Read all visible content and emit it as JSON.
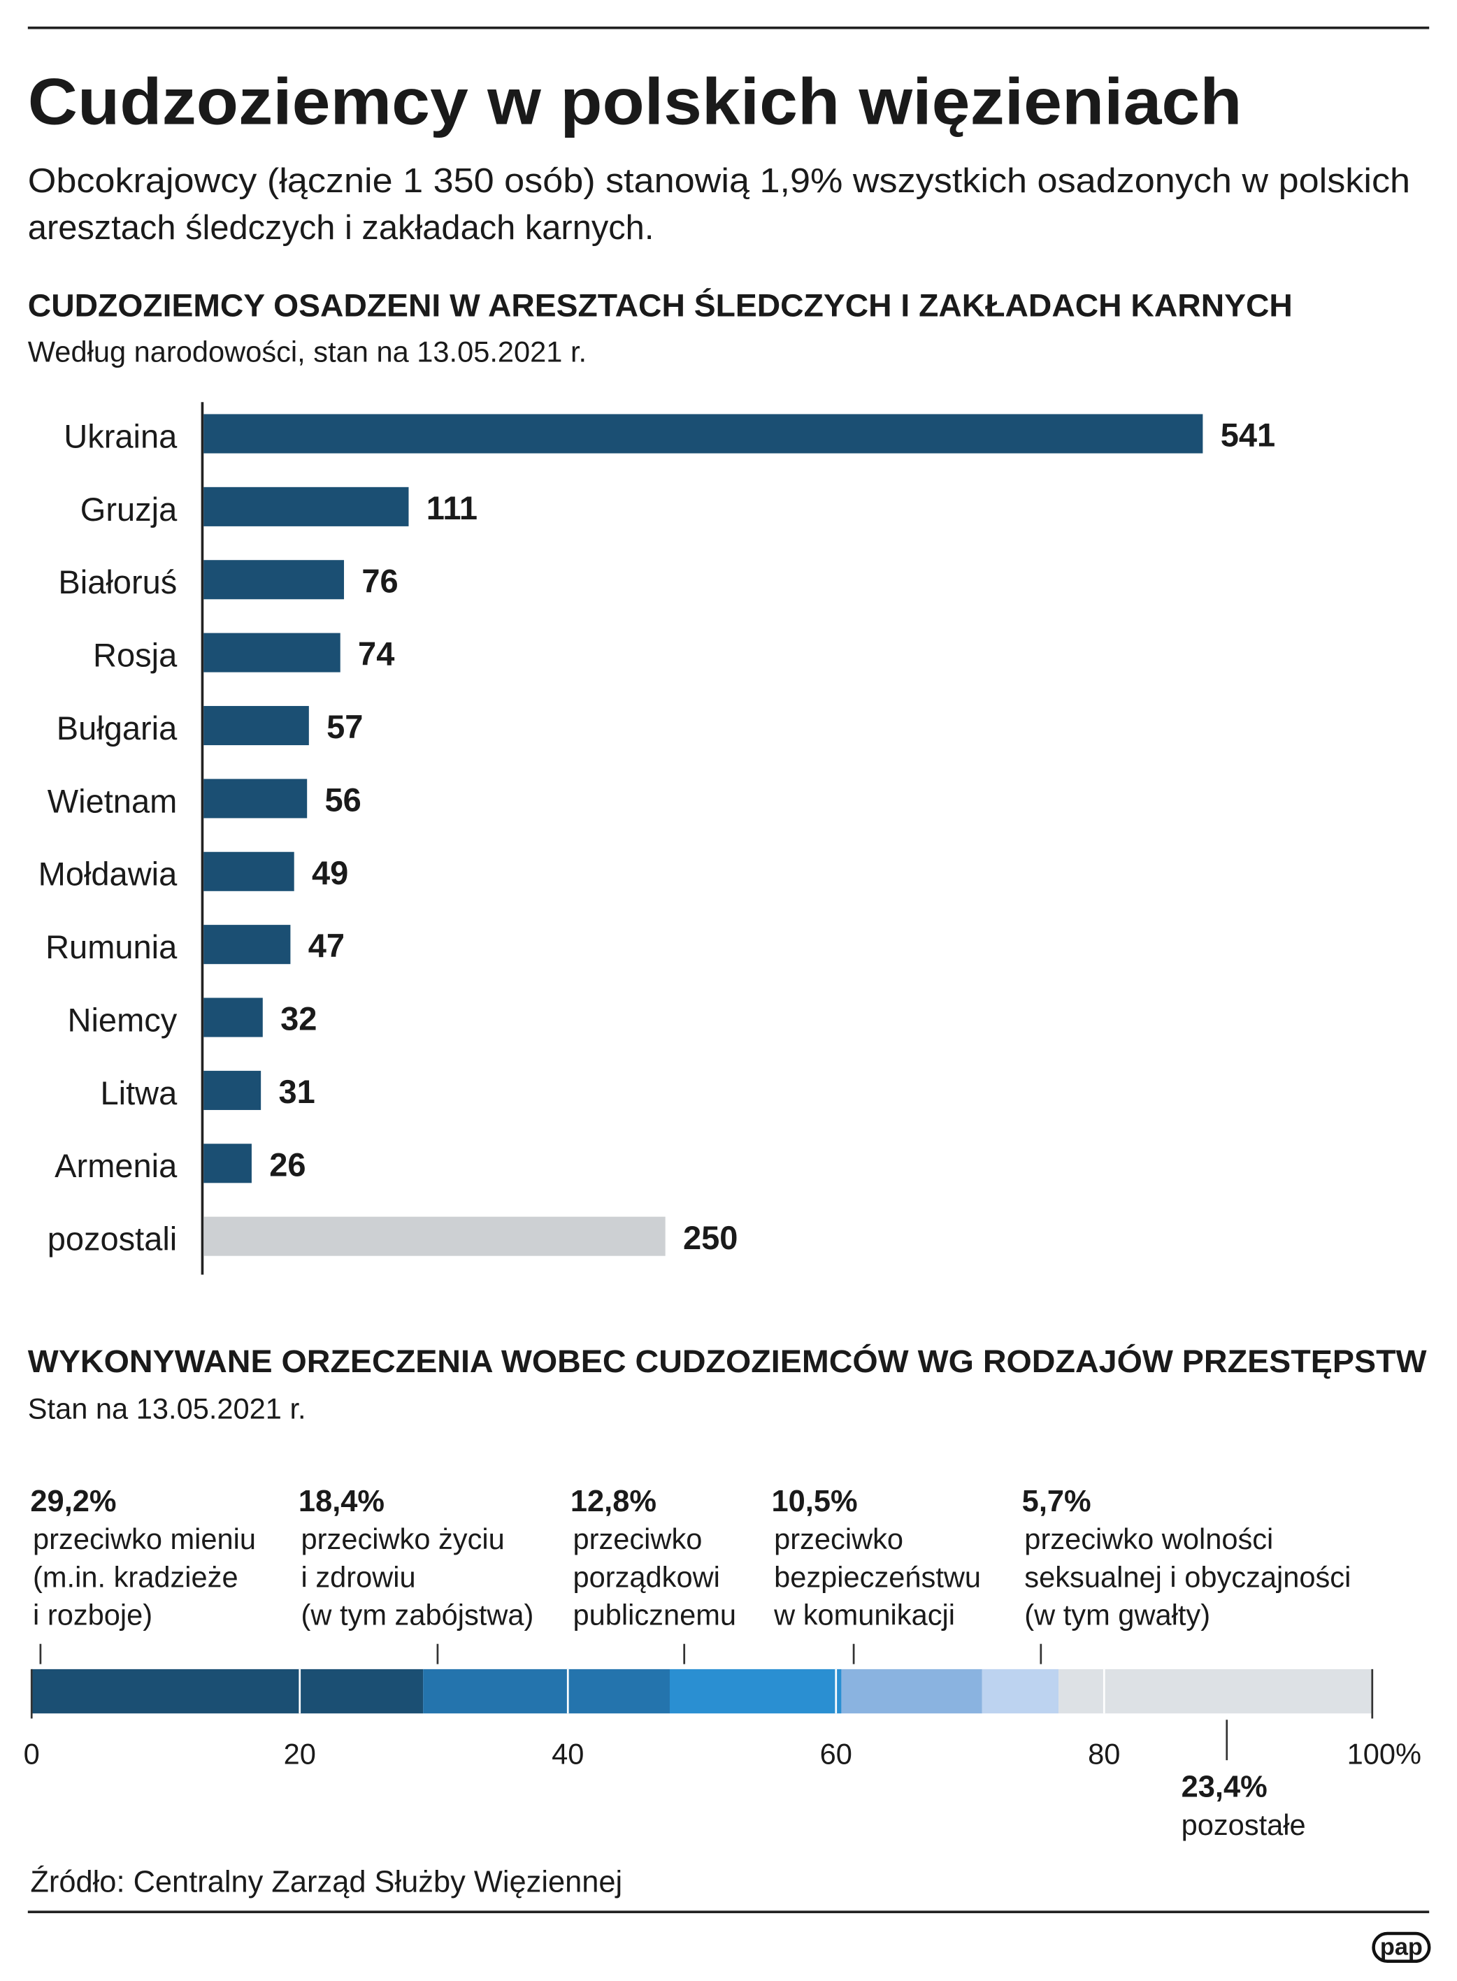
{
  "header": {
    "title": "Cudzoziemcy w polskich więzieniach",
    "subtitle": [
      "Obcokrajowcy (łącznie 1 350 osób) stanowią 1,9% wszystkich osadzonych w polskich",
      "aresztach śledczych i zakładach karnych."
    ]
  },
  "chart_data": [
    {
      "type": "bar",
      "orientation": "horizontal",
      "title": "CUDZOZIEMCY OSADZENI W ARESZTACH ŚLEDCZYCH I ZAKŁADACH KARNYCH",
      "subtitle": "Według narodowości, stan na 13.05.2021 r.",
      "categories": [
        "Ukraina",
        "Gruzja",
        "Białoruś",
        "Rosja",
        "Bułgaria",
        "Wietnam",
        "Mołdawia",
        "Rumunia",
        "Niemcy",
        "Litwa",
        "Armenia",
        "pozostali"
      ],
      "values": [
        541,
        111,
        76,
        74,
        57,
        56,
        49,
        47,
        32,
        31,
        26,
        250
      ],
      "colors": [
        "#1b4f73",
        "#1b4f73",
        "#1b4f73",
        "#1b4f73",
        "#1b4f73",
        "#1b4f73",
        "#1b4f73",
        "#1b4f73",
        "#1b4f73",
        "#1b4f73",
        "#1b4f73",
        "#cdd0d3"
      ]
    },
    {
      "type": "stacked_bar",
      "orientation": "horizontal",
      "title": "WYKONYWANE ORZECZENIA WOBEC CUDZOZIEMCÓW WG RODZAJÓW PRZESTĘPSTW",
      "subtitle": "Stan na 13.05.2021 r.",
      "xlim": [
        0,
        100
      ],
      "xticks": [
        0,
        20,
        40,
        60,
        80,
        {
          "value": 100,
          "label": "100%"
        }
      ],
      "series": [
        {
          "value": 29.2,
          "value_label": "29,2%",
          "label_lines": [
            "przeciwko mieniu",
            "(m.in. kradzieże",
            "i rozboje)"
          ],
          "color": "#1b4f73"
        },
        {
          "value": 18.4,
          "value_label": "18,4%",
          "label_lines": [
            "przeciwko życiu",
            "i zdrowiu",
            "(w tym zabójstwa)"
          ],
          "color": "#2474ad"
        },
        {
          "value": 12.8,
          "value_label": "12,8%",
          "label_lines": [
            "przeciwko",
            "porządkowi",
            "publicznemu"
          ],
          "color": "#2a8fd2"
        },
        {
          "value": 10.5,
          "value_label": "10,5%",
          "label_lines": [
            "przeciwko",
            "bezpieczeństwu",
            "w komunikacji"
          ],
          "color": "#8ab3e0"
        },
        {
          "value": 5.7,
          "value_label": "5,7%",
          "label_lines": [
            "przeciwko wolności",
            "seksualnej i obyczajności",
            "(w tym gwałty)"
          ],
          "color": "#bdd3f0"
        },
        {
          "value": 23.4,
          "value_label": "23,4%",
          "label_lines": [
            "pozostałe"
          ],
          "color": "#dde1e5"
        }
      ]
    }
  ],
  "source": "Źródło: Centralny Zarząd Służby Więziennej",
  "logo": "pap"
}
